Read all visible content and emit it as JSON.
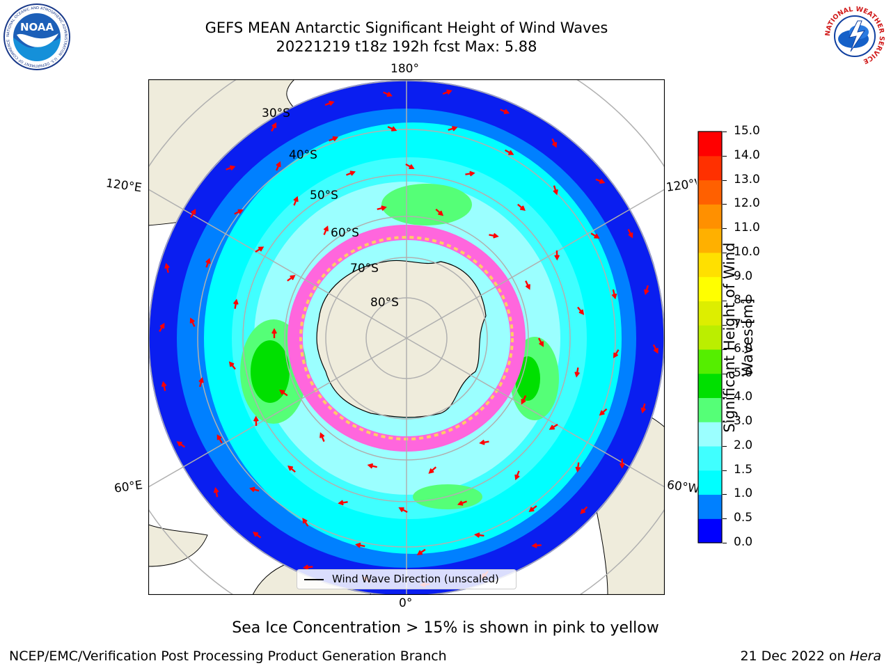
{
  "title": {
    "line1": "GEFS MEAN Antarctic Significant Height of Wind Waves",
    "line2": "20221219 t18z 192h fcst   Max: 5.88"
  },
  "logos": {
    "noaa": "NOAA",
    "noaa_ring_text": "NATIONAL OCEANIC AND ATMOSPHERIC ADMINISTRATION · U.S. DEPARTMENT OF COMMERCE",
    "nws_ring_text": "NATIONAL WEATHER SERVICE"
  },
  "map": {
    "projection": "south polar stereographic",
    "longitude_labels": {
      "top": "180°",
      "bottom": "0°",
      "upper_left": "120°E",
      "lower_left": "60°E",
      "upper_right": "120°W",
      "lower_right": "60°W"
    },
    "latitude_labels": [
      "30°S",
      "40°S",
      "50°S",
      "60°S",
      "70°S",
      "80°S"
    ],
    "legend_label": "Wind Wave Direction (unscaled)",
    "arrow_color": "#ff0000",
    "land_color": "#efecdc"
  },
  "colorbar": {
    "label_line1": "Significant Height of Wind",
    "label_line2": "Waves [m]",
    "ticks": [
      "0.0",
      "0.5",
      "1.0",
      "1.5",
      "2.0",
      "3.0",
      "4.0",
      "5.0",
      "6.0",
      "7.0",
      "8.0",
      "9.0",
      "10.0",
      "11.0",
      "12.0",
      "13.0",
      "14.0",
      "15.0"
    ],
    "colors": [
      "#0000ff",
      "#0080ff",
      "#00ffff",
      "#40ffff",
      "#9bffff",
      "#55ff77",
      "#00e000",
      "#55ee00",
      "#bbee00",
      "#ddee00",
      "#ffff00",
      "#ffe000",
      "#ffb000",
      "#ff9000",
      "#ff6000",
      "#ff3000",
      "#ff0000"
    ]
  },
  "note": "Sea Ice Concentration > 15% is shown in pink to yellow",
  "footer": {
    "left": "NCEP/EMC/Verification Post Processing Product Generation Branch",
    "right_prefix": "21 Dec 2022 on ",
    "right_machine": "Hera"
  }
}
